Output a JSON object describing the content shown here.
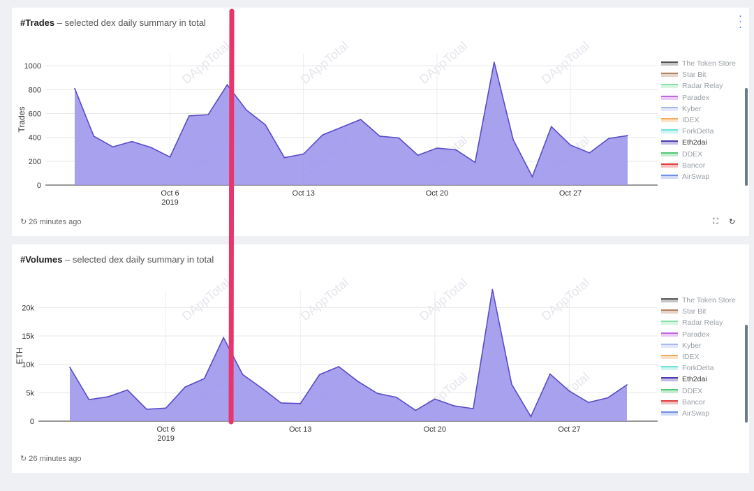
{
  "legend": [
    "The Token Store",
    "Star Bit",
    "Radar Relay",
    "Paradex",
    "Kyber",
    "IDEX",
    "ForkDelta",
    "Eth2dai",
    "DDEX",
    "Bancor",
    "AirSwap"
  ],
  "legend_colors": [
    "#555555",
    "#b08060",
    "#88e0a8",
    "#c266e0",
    "#a8b8f0",
    "#f4a860",
    "#70e0d8",
    "#4b3bb0",
    "#50c878",
    "#e04040",
    "#7090e0"
  ],
  "active_series": "Eth2dai",
  "series_color": "#9d97ec",
  "series_line": "#5a4bc8",
  "marker_color": "#e8356d",
  "watermark": "DAppTotal",
  "trades": {
    "title_bold": "#Trades",
    "title_desc": "selected dex daily summary in total",
    "updated": "26 minutes ago"
  },
  "volumes": {
    "title_bold": "#Volumes",
    "title_desc": "selected dex daily summary in total",
    "updated": "26 minutes ago"
  },
  "chart_data": [
    {
      "type": "area",
      "title": "#Trades – selected dex daily summary in total",
      "ylabel": "Trades",
      "ylim": [
        0,
        1100
      ],
      "yticks": [
        0,
        200,
        400,
        600,
        800,
        1000
      ],
      "ytick_labels": [
        "0",
        "200",
        "400",
        "600",
        "800",
        "1000"
      ],
      "xticks": [
        {
          "day": "2019-10-06",
          "label": "Oct 6",
          "sub": "2019"
        },
        {
          "day": "2019-10-13",
          "label": "Oct 13",
          "sub": ""
        },
        {
          "day": "2019-10-20",
          "label": "Oct 20",
          "sub": ""
        },
        {
          "day": "2019-10-27",
          "label": "Oct 27",
          "sub": ""
        }
      ],
      "x": [
        "2019-10-01",
        "2019-10-02",
        "2019-10-03",
        "2019-10-04",
        "2019-10-05",
        "2019-10-06",
        "2019-10-07",
        "2019-10-08",
        "2019-10-09",
        "2019-10-10",
        "2019-10-11",
        "2019-10-12",
        "2019-10-13",
        "2019-10-14",
        "2019-10-15",
        "2019-10-16",
        "2019-10-17",
        "2019-10-18",
        "2019-10-19",
        "2019-10-20",
        "2019-10-21",
        "2019-10-22",
        "2019-10-23",
        "2019-10-24",
        "2019-10-25",
        "2019-10-26",
        "2019-10-27",
        "2019-10-28",
        "2019-10-29",
        "2019-10-30"
      ],
      "series": [
        {
          "name": "Eth2dai",
          "values": [
            810,
            410,
            320,
            365,
            315,
            235,
            580,
            590,
            840,
            630,
            505,
            230,
            260,
            420,
            485,
            550,
            410,
            395,
            250,
            310,
            295,
            190,
            1030,
            380,
            70,
            490,
            335,
            270,
            390,
            415
          ]
        }
      ],
      "grid": true,
      "legend_position": "right"
    },
    {
      "type": "area",
      "title": "#Volumes – selected dex daily summary in total",
      "ylabel": "ETH",
      "ylim": [
        0,
        23000
      ],
      "yticks": [
        0,
        5000,
        10000,
        15000,
        20000
      ],
      "ytick_labels": [
        "0",
        "5k",
        "10k",
        "15k",
        "20k"
      ],
      "xticks": [
        {
          "day": "2019-10-06",
          "label": "Oct 6",
          "sub": "2019"
        },
        {
          "day": "2019-10-13",
          "label": "Oct 13",
          "sub": ""
        },
        {
          "day": "2019-10-20",
          "label": "Oct 20",
          "sub": ""
        },
        {
          "day": "2019-10-27",
          "label": "Oct 27",
          "sub": ""
        }
      ],
      "x": [
        "2019-10-01",
        "2019-10-02",
        "2019-10-03",
        "2019-10-04",
        "2019-10-05",
        "2019-10-06",
        "2019-10-07",
        "2019-10-08",
        "2019-10-09",
        "2019-10-10",
        "2019-10-11",
        "2019-10-12",
        "2019-10-13",
        "2019-10-14",
        "2019-10-15",
        "2019-10-16",
        "2019-10-17",
        "2019-10-18",
        "2019-10-19",
        "2019-10-20",
        "2019-10-21",
        "2019-10-22",
        "2019-10-23",
        "2019-10-24",
        "2019-10-25",
        "2019-10-26",
        "2019-10-27",
        "2019-10-28",
        "2019-10-29",
        "2019-10-30"
      ],
      "series": [
        {
          "name": "Eth2dai",
          "values": [
            9500,
            3800,
            4300,
            5500,
            2100,
            2300,
            6000,
            7500,
            14700,
            8200,
            5800,
            3200,
            3100,
            8200,
            9600,
            7000,
            4900,
            4200,
            1900,
            3900,
            2700,
            2200,
            23200,
            6500,
            800,
            8300,
            5300,
            3300,
            4100,
            6400
          ]
        }
      ],
      "grid": true,
      "legend_position": "right"
    }
  ]
}
